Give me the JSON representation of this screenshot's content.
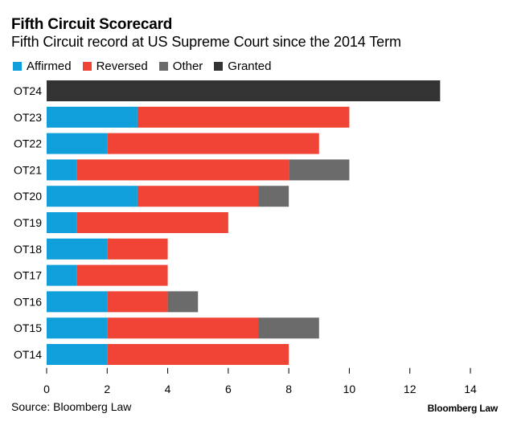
{
  "chart_data": {
    "type": "bar",
    "orientation": "horizontal",
    "stacked": true,
    "title": "Fifth Circuit Scorecard",
    "subtitle": "Fifth Circuit record at US Supreme Court since the 2014 Term",
    "categories": [
      "OT24",
      "OT23",
      "OT22",
      "OT21",
      "OT20",
      "OT19",
      "OT18",
      "OT17",
      "OT16",
      "OT15",
      "OT14"
    ],
    "series": [
      {
        "name": "Affirmed",
        "color": "#119fdb",
        "values": [
          0,
          3,
          2,
          1,
          3,
          1,
          2,
          1,
          2,
          2,
          2
        ]
      },
      {
        "name": "Reversed",
        "color": "#ef4436",
        "values": [
          0,
          7,
          7,
          7,
          4,
          5,
          2,
          3,
          2,
          5,
          6
        ]
      },
      {
        "name": "Other",
        "color": "#6b6b6b",
        "values": [
          0,
          0,
          0,
          2,
          1,
          0,
          0,
          0,
          1,
          2,
          0
        ]
      },
      {
        "name": "Granted",
        "color": "#333333",
        "values": [
          13,
          0,
          0,
          0,
          0,
          0,
          0,
          0,
          0,
          0,
          0
        ]
      }
    ],
    "xlabel": "",
    "ylabel": "",
    "xlim": [
      0,
      14
    ],
    "xticks": [
      0,
      2,
      4,
      6,
      8,
      10,
      12,
      14
    ],
    "grid": false,
    "legend_position": "top-left"
  },
  "footer": {
    "source": "Source: Bloomberg Law",
    "brand": "Bloomberg Law"
  }
}
